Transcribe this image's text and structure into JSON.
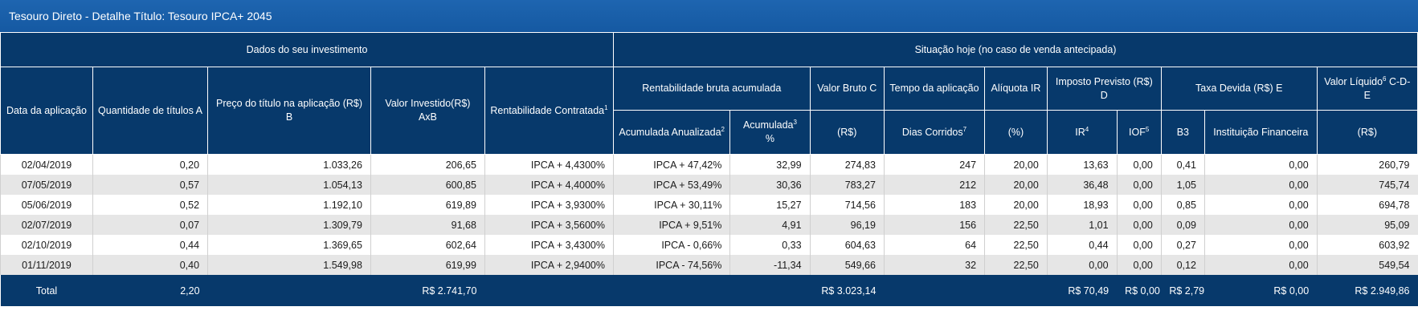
{
  "window": {
    "title": "Tesouro Direto - Detalhe Título: Tesouro IPCA+ 2045"
  },
  "groups": {
    "investment": "Dados do seu investimento",
    "current": "Situação hoje (no caso de venda antecipada)"
  },
  "headers": {
    "data_aplicacao": "Data da aplicação",
    "quantidade": "Quantidade de títulos A",
    "preco": "Preço do título na aplicação (R$) B",
    "valor_investido": "Valor Investido(R$) AxB",
    "rentab_contratada": "Rentabilidade Contratada",
    "rentab_contratada_note": "1",
    "rentab_bruta": "Rentabilidade bruta acumulada",
    "acum_anualizada": "Acumulada Anualizada",
    "acum_anualizada_note": "2",
    "acumulada": "Acumulada",
    "acumulada_note": "3",
    "acumulada_unit": "%",
    "valor_bruto": "Valor Bruto C",
    "valor_bruto_unit": "(R$)",
    "tempo": "Tempo da aplicação",
    "dias_corridos": "Dias Corridos",
    "dias_corridos_note": "7",
    "aliquota": "Alíquota IR",
    "aliquota_unit": "(%)",
    "imposto": "Imposto Previsto (R$) D",
    "ir": "IR",
    "ir_note": "4",
    "iof": "IOF",
    "iof_note": "5",
    "taxa": "Taxa Devida (R$) E",
    "b3": "B3",
    "instituicao": "Instituição Financeira",
    "valor_liquido_a": "Valor Líquido",
    "valor_liquido_note": "6",
    "valor_liquido_b": " C-D-E",
    "valor_liquido_unit": "(R$)"
  },
  "rows": [
    [
      "02/04/2019",
      "0,20",
      "1.033,26",
      "206,65",
      "IPCA + 4,4300%",
      "IPCA + 47,42%",
      "32,99",
      "274,83",
      "247",
      "20,00",
      "13,63",
      "0,00",
      "0,41",
      "0,00",
      "260,79"
    ],
    [
      "07/05/2019",
      "0,57",
      "1.054,13",
      "600,85",
      "IPCA + 4,4000%",
      "IPCA + 53,49%",
      "30,36",
      "783,27",
      "212",
      "20,00",
      "36,48",
      "0,00",
      "1,05",
      "0,00",
      "745,74"
    ],
    [
      "05/06/2019",
      "0,52",
      "1.192,10",
      "619,89",
      "IPCA + 3,9300%",
      "IPCA + 30,11%",
      "15,27",
      "714,56",
      "183",
      "20,00",
      "18,93",
      "0,00",
      "0,85",
      "0,00",
      "694,78"
    ],
    [
      "02/07/2019",
      "0,07",
      "1.309,79",
      "91,68",
      "IPCA + 3,5600%",
      "IPCA + 9,51%",
      "4,91",
      "96,19",
      "156",
      "22,50",
      "1,01",
      "0,00",
      "0,09",
      "0,00",
      "95,09"
    ],
    [
      "02/10/2019",
      "0,44",
      "1.369,65",
      "602,64",
      "IPCA + 3,4300%",
      "IPCA - 0,66%",
      "0,33",
      "604,63",
      "64",
      "22,50",
      "0,44",
      "0,00",
      "0,27",
      "0,00",
      "603,92"
    ],
    [
      "01/11/2019",
      "0,40",
      "1.549,98",
      "619,99",
      "IPCA + 2,9400%",
      "IPCA - 74,56%",
      "-11,34",
      "549,66",
      "32",
      "22,50",
      "0,00",
      "0,00",
      "0,12",
      "0,00",
      "549,54"
    ]
  ],
  "totals": {
    "label": "Total",
    "quantidade": "2,20",
    "valor_investido": "R$ 2.741,70",
    "valor_bruto": "R$ 3.023,14",
    "ir": "R$ 70,49",
    "iof": "R$ 0,00",
    "b3": "R$ 2,79",
    "instituicao": "R$ 0,00",
    "valor_liquido": "R$ 2.949,86"
  }
}
